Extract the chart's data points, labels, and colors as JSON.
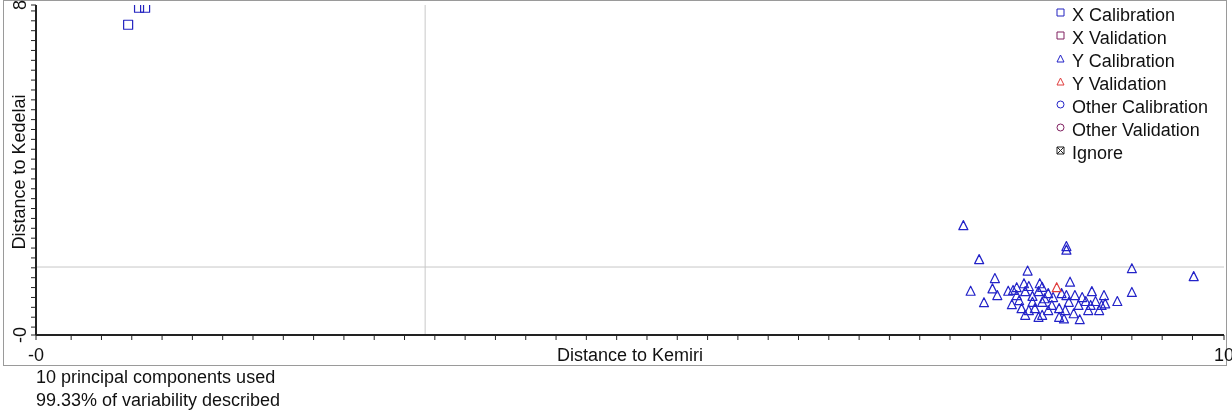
{
  "chart_data": {
    "type": "scatter",
    "xlabel": "Distance to Kemiri",
    "ylabel": "Distance to Kedelai",
    "annotations": [
      "10 principal components used",
      "99.33% of variability described"
    ],
    "xlim": [
      -0.29,
      9.51
    ],
    "ylim": [
      -0.2,
      8.15
    ],
    "xticks": [
      {
        "value": -0.29,
        "label": "-0"
      },
      {
        "value": 0,
        "label": null
      },
      {
        "value": 0.25,
        "label": null
      },
      {
        "value": 0.5,
        "label": null
      },
      {
        "value": 0.75,
        "label": null
      },
      {
        "value": 1,
        "label": null
      },
      {
        "value": 1.25,
        "label": null
      },
      {
        "value": 1.5,
        "label": null
      },
      {
        "value": 1.75,
        "label": null
      },
      {
        "value": 2,
        "label": null
      },
      {
        "value": 2.25,
        "label": null
      },
      {
        "value": 2.5,
        "label": null
      },
      {
        "value": 2.75,
        "label": null
      },
      {
        "value": 3,
        "label": null
      },
      {
        "value": 3.25,
        "label": null
      },
      {
        "value": 3.5,
        "label": null
      },
      {
        "value": 3.75,
        "label": null
      },
      {
        "value": 4,
        "label": null
      },
      {
        "value": 4.25,
        "label": null
      },
      {
        "value": 4.5,
        "label": null
      },
      {
        "value": 4.75,
        "label": null
      },
      {
        "value": 5,
        "label": null
      },
      {
        "value": 5.25,
        "label": null
      },
      {
        "value": 5.5,
        "label": null
      },
      {
        "value": 5.75,
        "label": null
      },
      {
        "value": 6,
        "label": null
      },
      {
        "value": 6.25,
        "label": null
      },
      {
        "value": 6.5,
        "label": null
      },
      {
        "value": 6.75,
        "label": null
      },
      {
        "value": 7,
        "label": null
      },
      {
        "value": 7.25,
        "label": null
      },
      {
        "value": 7.5,
        "label": null
      },
      {
        "value": 7.75,
        "label": null
      },
      {
        "value": 8,
        "label": null
      },
      {
        "value": 8.25,
        "label": null
      },
      {
        "value": 8.5,
        "label": null
      },
      {
        "value": 8.75,
        "label": null
      },
      {
        "value": 9,
        "label": null
      },
      {
        "value": 9.25,
        "label": null
      },
      {
        "value": 9.51,
        "label": "10"
      }
    ],
    "yticks": [
      {
        "value": -0.2,
        "label": "-0"
      },
      {
        "value": 0,
        "label": null
      },
      {
        "value": 0.25,
        "label": null
      },
      {
        "value": 0.5,
        "label": null
      },
      {
        "value": 0.75,
        "label": null
      },
      {
        "value": 1,
        "label": null
      },
      {
        "value": 1.25,
        "label": null
      },
      {
        "value": 1.5,
        "label": null
      },
      {
        "value": 1.75,
        "label": null
      },
      {
        "value": 2,
        "label": null
      },
      {
        "value": 2.25,
        "label": null
      },
      {
        "value": 2.5,
        "label": null
      },
      {
        "value": 2.75,
        "label": null
      },
      {
        "value": 3,
        "label": null
      },
      {
        "value": 3.25,
        "label": null
      },
      {
        "value": 3.5,
        "label": null
      },
      {
        "value": 3.75,
        "label": null
      },
      {
        "value": 4,
        "label": null
      },
      {
        "value": 4.25,
        "label": null
      },
      {
        "value": 4.5,
        "label": null
      },
      {
        "value": 4.75,
        "label": null
      },
      {
        "value": 5,
        "label": null
      },
      {
        "value": 5.25,
        "label": null
      },
      {
        "value": 5.5,
        "label": null
      },
      {
        "value": 5.75,
        "label": null
      },
      {
        "value": 6,
        "label": null
      },
      {
        "value": 6.25,
        "label": null
      },
      {
        "value": 6.5,
        "label": null
      },
      {
        "value": 6.75,
        "label": null
      },
      {
        "value": 7,
        "label": null
      },
      {
        "value": 7.25,
        "label": null
      },
      {
        "value": 7.5,
        "label": null
      },
      {
        "value": 7.75,
        "label": null
      },
      {
        "value": 8,
        "label": null
      },
      {
        "value": 8.15,
        "label": "8"
      }
    ],
    "legend": "top right",
    "ref_lines": [
      {
        "axis": "x",
        "value": 2.92,
        "color": "#c8c8c8"
      },
      {
        "axis": "y",
        "value": 1.52,
        "color": "#c8c8c8"
      }
    ],
    "series": [
      {
        "name": "X Calibration",
        "color": "#2323c0",
        "marker": "square",
        "x": [
          0.47,
          0.56,
          0.61
        ],
        "values": [
          7.65,
          8.08,
          8.08
        ]
      },
      {
        "name": "X Validation",
        "color": "#802060",
        "marker": "square"
      },
      {
        "name": "Y Calibration",
        "color": "#2323c8",
        "marker": "triangle",
        "x": [
          7.36,
          7.49,
          8.21,
          8.21,
          7.89,
          8.75,
          9.26,
          7.62,
          7.42,
          7.53,
          7.6,
          7.64,
          7.73,
          7.76,
          7.8,
          7.86,
          7.9,
          7.99,
          8.24,
          8.42,
          8.52,
          8.63,
          8.75,
          7.87,
          7.98,
          8.01,
          8.19,
          8.32,
          8.39,
          8.48,
          8.53,
          7.82,
          7.93,
          8.03,
          8.09,
          8.15,
          8.23,
          8.28,
          8.31,
          8.27,
          8.15,
          7.84,
          7.95,
          8.01,
          8.06,
          8.17,
          8.37,
          8.45,
          7.87,
          7.93,
          7.8,
          7.98,
          8.1,
          8.21,
          8.34,
          8.41,
          8.5,
          8.06,
          8.2,
          7.9,
          7.77,
          8.01
        ],
        "values": [
          2.58,
          1.72,
          2.05,
          1.96,
          1.43,
          1.49,
          1.29,
          1.24,
          0.92,
          0.63,
          0.98,
          0.81,
          0.92,
          0.58,
          1.01,
          1.11,
          1.04,
          1.11,
          1.15,
          0.91,
          0.81,
          0.66,
          0.89,
          0.31,
          0.26,
          0.31,
          0.22,
          0.2,
          0.43,
          0.43,
          0.6,
          0.68,
          0.64,
          0.73,
          0.56,
          0.48,
          0.64,
          0.81,
          0.56,
          0.35,
          0.26,
          0.48,
          0.48,
          0.64,
          0.86,
          0.86,
          0.66,
          0.66,
          0.91,
          0.79,
          0.81,
          0.91,
          0.76,
          0.81,
          0.76,
          0.56,
          0.56,
          0.43,
          0.43,
          0.43,
          0.94,
          1.02
        ]
      },
      {
        "name": "Y Validation",
        "color": "#e03c3c",
        "marker": "triangle",
        "x": [
          8.13
        ],
        "values": [
          1.01
        ]
      },
      {
        "name": "Other Calibration",
        "color": "#2323c8",
        "marker": "circle"
      },
      {
        "name": "Other Validation",
        "color": "#802060",
        "marker": "circle"
      },
      {
        "name": "Ignore",
        "color": "#202020",
        "marker": "cross"
      }
    ]
  }
}
